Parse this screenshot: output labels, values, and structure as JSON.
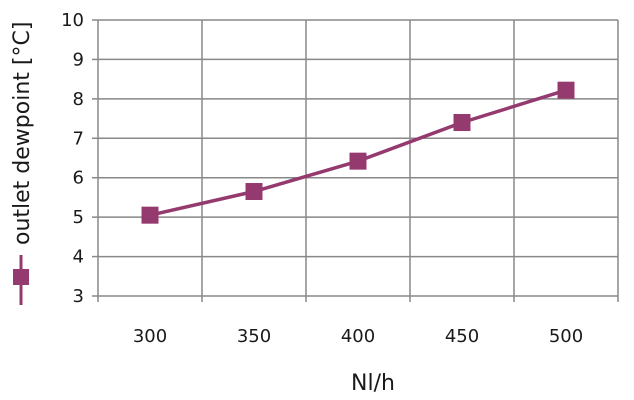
{
  "chart_data": {
    "type": "line",
    "x": [
      300,
      350,
      400,
      450,
      500
    ],
    "series": [
      {
        "name": "outlet dewpoint [°C]",
        "values": [
          5.05,
          5.65,
          6.42,
          7.4,
          8.22
        ]
      }
    ],
    "categories": [
      "300",
      "350",
      "400",
      "450",
      "500"
    ],
    "xlabel": "Nl/h",
    "ylabel": "",
    "ylim": [
      3,
      10
    ],
    "yticks": [
      "3",
      "4",
      "5",
      "6",
      "7",
      "8",
      "9",
      "10"
    ],
    "grid": true,
    "legend": "left, rotated vertical",
    "series_color": "#943a6e",
    "grid_color": "#888888",
    "marker": "square"
  }
}
